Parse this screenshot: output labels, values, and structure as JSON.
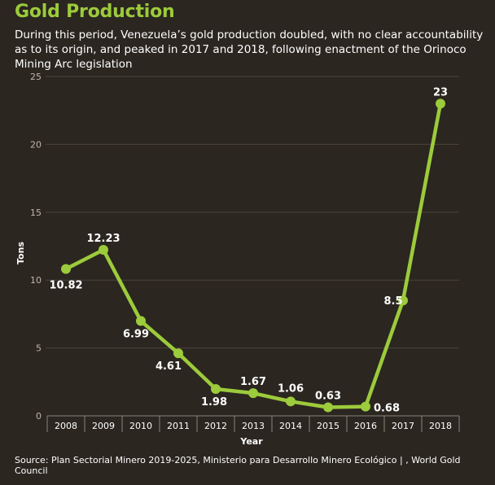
{
  "header": {
    "title": "Gold Production",
    "subtitle": "During this period, Venezuela’s gold production doubled, with no clear accountability as to its origin, and peaked in 2017 and 2018, following enactment of the Orinoco Mining Arc legislation"
  },
  "footer": {
    "source": "Source: Plan Sectorial Minero 2019-2025, Ministerio para Desarrollo Minero Ecológico | , World Gold Council"
  },
  "colors": {
    "background": "#2b2620",
    "accent": "#9ccb3b",
    "grid": "#4a443c"
  },
  "chart_data": {
    "type": "line",
    "xlabel": "Year",
    "ylabel": "Tons",
    "ylim": [
      0,
      25
    ],
    "yticks": [
      0,
      5,
      10,
      15,
      20,
      25
    ],
    "grid": true,
    "categories": [
      "2008",
      "2009",
      "2010",
      "2011",
      "2012",
      "2013",
      "2014",
      "2015",
      "2016",
      "2017",
      "2018"
    ],
    "series": [
      {
        "values": [
          10.82,
          12.23,
          6.99,
          4.61,
          1.98,
          1.67,
          1.06,
          0.63,
          0.68,
          8.5,
          23
        ],
        "labels": [
          "10.82",
          "12.23",
          "6.99",
          "4.61",
          "1.98",
          "1.67",
          "1.06",
          "0.63",
          "0.68",
          "8.5",
          "23"
        ]
      }
    ]
  }
}
